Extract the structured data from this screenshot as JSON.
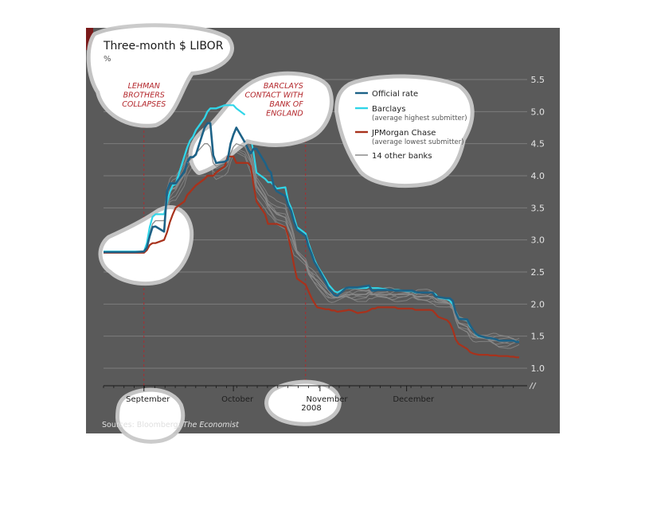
{
  "chart_data": {
    "type": "line",
    "title": "Three-month $ LIBOR",
    "unit": "%",
    "year": "2008",
    "source_prefix": "Sources: Bloomberg; ",
    "source_italic": "The Economist",
    "ylim": [
      1.0,
      5.5
    ],
    "yticks": [
      "5.5",
      "5.0",
      "4.5",
      "4.0",
      "3.5",
      "3.0",
      "2.5",
      "2.0",
      "1.5",
      "1.0"
    ],
    "grid": true,
    "months": [
      "September",
      "October",
      "November",
      "December"
    ],
    "annotations": [
      {
        "id": "lehman",
        "lines": [
          "LEHMAN",
          "BROTHERS",
          "COLLAPSES"
        ],
        "day": 15
      },
      {
        "id": "barclays",
        "lines": [
          "BARCLAYS",
          "CONTACT WITH",
          "BANK OF",
          "ENGLAND"
        ],
        "day": 71
      }
    ],
    "legend": [
      {
        "label": "Official rate",
        "sub": "",
        "color": "#1d6287"
      },
      {
        "label": "Barclays",
        "sub": "(average highest submitter)",
        "color": "#30d5e8"
      },
      {
        "label": "JPMorgan Chase",
        "sub": "(average lowest submitter)",
        "color": "#a8321c"
      },
      {
        "label": "14 other banks",
        "sub": "",
        "color": "#8a8a8a"
      }
    ],
    "x_days": [
      1,
      3,
      5,
      8,
      10,
      12,
      15,
      16,
      17,
      18,
      19,
      22,
      23,
      24,
      25,
      26,
      29,
      30,
      31,
      32,
      33,
      36,
      37,
      38,
      39,
      40,
      43,
      44,
      45,
      46,
      47,
      50,
      51,
      52,
      53,
      54,
      57,
      58,
      59,
      60,
      61,
      64,
      65,
      66,
      67,
      68,
      71,
      72,
      73,
      74,
      75,
      78,
      79,
      80,
      81,
      82,
      85,
      86,
      87,
      88,
      89,
      92,
      93,
      94,
      95,
      96,
      99,
      100,
      101,
      102,
      103,
      106,
      107,
      108,
      109,
      110,
      113,
      114,
      115,
      116,
      117,
      120,
      121,
      122,
      123,
      124,
      127,
      128,
      129,
      130,
      131,
      134,
      135,
      136,
      137,
      138,
      141,
      142,
      143,
      144,
      145
    ],
    "series": [
      {
        "name": "Official rate",
        "color": "#1d6287",
        "values": [
          2.81,
          2.81,
          2.81,
          2.81,
          2.81,
          2.81,
          2.82,
          2.88,
          3.06,
          3.2,
          3.21,
          3.13,
          3.76,
          3.88,
          3.88,
          3.88,
          4.06,
          4.21,
          4.29,
          4.29,
          4.33,
          4.75,
          4.82,
          4.82,
          4.32,
          4.2,
          4.22,
          4.25,
          4.5,
          4.64,
          4.75,
          4.52,
          4.42,
          4.35,
          4.42,
          4.42,
          4.2,
          4.1,
          4.05,
          3.83,
          3.76,
          3.68,
          3.54,
          3.45,
          3.28,
          3.16,
          3.06,
          2.9,
          2.79,
          2.66,
          2.58,
          2.34,
          2.24,
          2.19,
          2.14,
          2.13,
          2.25,
          2.26,
          2.26,
          2.26,
          2.26,
          2.28,
          2.29,
          2.21,
          2.21,
          2.22,
          2.22,
          2.22,
          2.22,
          2.21,
          2.21,
          2.21,
          2.21,
          2.21,
          2.19,
          2.18,
          2.18,
          2.18,
          2.18,
          2.12,
          2.11,
          2.09,
          2.09,
          2.05,
          1.87,
          1.77,
          1.76,
          1.67,
          1.6,
          1.54,
          1.51,
          1.47,
          1.47,
          1.46,
          1.45,
          1.43,
          1.43,
          1.43,
          1.43,
          1.41,
          1.41
        ]
      },
      {
        "name": "Barclays",
        "color": "#30d5e8",
        "values": [
          2.82,
          2.82,
          2.82,
          2.82,
          2.82,
          2.82,
          2.82,
          2.95,
          3.2,
          3.36,
          3.4,
          3.4,
          3.59,
          3.75,
          3.85,
          3.87,
          4.3,
          4.44,
          4.55,
          4.61,
          4.71,
          4.9,
          5.0,
          5.05,
          5.05,
          5.05,
          5.1,
          5.1,
          5.1,
          5.1,
          5.05,
          4.95,
          4.75,
          4.6,
          4.35,
          4.05,
          3.95,
          3.9,
          3.9,
          3.85,
          3.8,
          3.82,
          3.6,
          3.5,
          3.35,
          3.2,
          3.1,
          2.95,
          2.82,
          2.7,
          2.6,
          2.38,
          2.3,
          2.25,
          2.2,
          2.18,
          2.25,
          2.25,
          2.25,
          2.25,
          2.25,
          2.25,
          2.27,
          2.25,
          2.25,
          2.25,
          2.23,
          2.22,
          2.22,
          2.22,
          2.22,
          2.2,
          2.2,
          2.2,
          2.18,
          2.18,
          2.18,
          2.18,
          2.18,
          2.15,
          2.1,
          2.08,
          2.05,
          2.0,
          1.88,
          1.78,
          1.75,
          1.65,
          1.6,
          1.53,
          1.5,
          1.47,
          1.47,
          1.46,
          1.45,
          1.43,
          1.43,
          1.43,
          1.43,
          1.41,
          1.41
        ]
      },
      {
        "name": "JPMorgan Chase",
        "color": "#a8321c",
        "values": [
          2.8,
          2.8,
          2.8,
          2.8,
          2.8,
          2.8,
          2.8,
          2.84,
          2.92,
          2.95,
          2.95,
          3.0,
          3.12,
          3.28,
          3.4,
          3.5,
          3.6,
          3.7,
          3.75,
          3.8,
          3.85,
          3.95,
          4.0,
          4.0,
          4.0,
          4.05,
          4.15,
          4.3,
          4.3,
          4.3,
          4.2,
          4.2,
          4.2,
          4.15,
          3.85,
          3.6,
          3.4,
          3.25,
          3.25,
          3.25,
          3.25,
          3.2,
          3.05,
          2.85,
          2.6,
          2.4,
          2.3,
          2.2,
          2.1,
          2.02,
          1.95,
          1.92,
          1.92,
          1.9,
          1.9,
          1.88,
          1.9,
          1.91,
          1.9,
          1.88,
          1.86,
          1.88,
          1.9,
          1.93,
          1.93,
          1.95,
          1.95,
          1.95,
          1.95,
          1.95,
          1.93,
          1.93,
          1.93,
          1.93,
          1.91,
          1.91,
          1.91,
          1.91,
          1.9,
          1.85,
          1.8,
          1.75,
          1.7,
          1.6,
          1.45,
          1.38,
          1.3,
          1.25,
          1.23,
          1.22,
          1.21,
          1.21,
          1.2,
          1.2,
          1.2,
          1.19,
          1.19,
          1.18,
          1.18,
          1.17,
          1.17
        ]
      },
      {
        "name": "14 other banks",
        "color": "#8a8a8a",
        "values": [
          2.82,
          2.82,
          2.82,
          2.82,
          2.82,
          2.82,
          2.82,
          2.9,
          3.1,
          3.25,
          3.3,
          3.3,
          3.6,
          3.75,
          3.8,
          3.82,
          4.05,
          4.2,
          4.25,
          4.3,
          4.35,
          4.5,
          4.5,
          4.45,
          4.2,
          4.15,
          4.2,
          4.22,
          4.35,
          4.45,
          4.5,
          4.45,
          4.35,
          4.25,
          4.05,
          3.85,
          3.65,
          3.55,
          3.5,
          3.45,
          3.4,
          3.35,
          3.2,
          3.1,
          2.95,
          2.8,
          2.65,
          2.5,
          2.45,
          2.4,
          2.35,
          2.2,
          2.15,
          2.12,
          2.1,
          2.1,
          2.15,
          2.15,
          2.15,
          2.15,
          2.15,
          2.15,
          2.18,
          2.15,
          2.15,
          2.15,
          2.15,
          2.15,
          2.15,
          2.15,
          2.15,
          2.15,
          2.15,
          2.15,
          2.12,
          2.12,
          2.12,
          2.12,
          2.12,
          2.08,
          2.05,
          2.02,
          2.0,
          1.95,
          1.8,
          1.7,
          1.65,
          1.58,
          1.53,
          1.5,
          1.48,
          1.46,
          1.45,
          1.44,
          1.43,
          1.42,
          1.42,
          1.42,
          1.42,
          1.41,
          1.41
        ]
      }
    ]
  }
}
